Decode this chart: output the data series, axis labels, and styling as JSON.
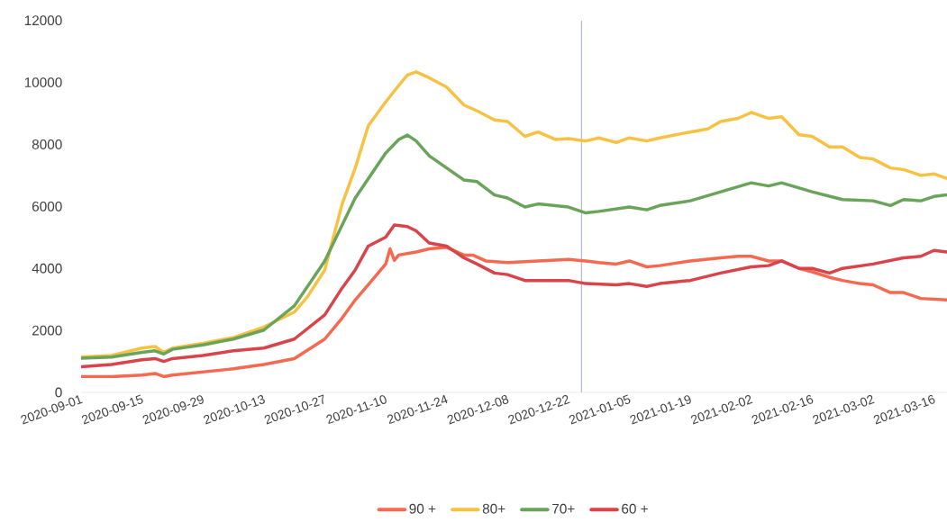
{
  "chart_data": {
    "type": "line",
    "legend": "bottom",
    "marker": "none",
    "line_style": "solid",
    "grid": false,
    "xlim": [
      "2020-09-01",
      "2021-03-19"
    ],
    "ylim": [
      0,
      12000
    ],
    "xticks": [
      "2020-09-01",
      "2020-09-15",
      "2020-09-29",
      "2020-10-13",
      "2020-10-27",
      "2020-11-10",
      "2020-11-24",
      "2020-12-08",
      "2020-12-22",
      "2021-01-05",
      "2021-01-19",
      "2021-02-02",
      "2021-02-16",
      "2021-03-02",
      "2021-03-16"
    ],
    "yticks": [
      0,
      2000,
      4000,
      6000,
      8000,
      10000,
      12000
    ],
    "ref_lines": [
      {
        "axis": "x",
        "value": "2020-12-25",
        "color": "#a3acd0"
      }
    ],
    "series": [
      {
        "name": "90 +",
        "color": "#f4694f",
        "x": [
          "2020-09-01",
          "2020-09-08",
          "2020-09-15",
          "2020-09-18",
          "2020-09-20",
          "2020-09-22",
          "2020-09-29",
          "2020-10-06",
          "2020-10-13",
          "2020-10-20",
          "2020-10-27",
          "2020-10-31",
          "2020-11-03",
          "2020-11-06",
          "2020-11-10",
          "2020-11-11",
          "2020-11-12",
          "2020-11-13",
          "2020-11-17",
          "2020-11-20",
          "2020-11-24",
          "2020-11-28",
          "2020-11-30",
          "2020-12-03",
          "2020-12-08",
          "2020-12-15",
          "2020-12-22",
          "2020-12-26",
          "2020-12-29",
          "2021-01-02",
          "2021-01-05",
          "2021-01-09",
          "2021-01-12",
          "2021-01-19",
          "2021-01-26",
          "2021-01-30",
          "2021-02-02",
          "2021-02-06",
          "2021-02-09",
          "2021-02-13",
          "2021-02-16",
          "2021-02-20",
          "2021-02-23",
          "2021-02-27",
          "2021-03-02",
          "2021-03-06",
          "2021-03-09",
          "2021-03-13",
          "2021-03-19"
        ],
        "values": [
          510,
          510,
          560,
          610,
          510,
          560,
          660,
          760,
          900,
          1090,
          1720,
          2400,
          2980,
          3470,
          4140,
          4630,
          4260,
          4430,
          4530,
          4630,
          4680,
          4430,
          4430,
          4240,
          4190,
          4240,
          4290,
          4240,
          4190,
          4140,
          4240,
          4050,
          4090,
          4240,
          4340,
          4390,
          4390,
          4240,
          4240,
          4000,
          3890,
          3710,
          3610,
          3510,
          3470,
          3220,
          3220,
          3030,
          2980
        ]
      },
      {
        "name": "80+",
        "color": "#f7c244",
        "x": [
          "2020-09-01",
          "2020-09-08",
          "2020-09-15",
          "2020-09-18",
          "2020-09-20",
          "2020-09-22",
          "2020-09-29",
          "2020-10-06",
          "2020-10-13",
          "2020-10-20",
          "2020-10-23",
          "2020-10-27",
          "2020-10-31",
          "2020-11-03",
          "2020-11-06",
          "2020-11-10",
          "2020-11-13",
          "2020-11-15",
          "2020-11-17",
          "2020-11-20",
          "2020-11-24",
          "2020-11-28",
          "2020-12-01",
          "2020-12-05",
          "2020-12-08",
          "2020-12-12",
          "2020-12-15",
          "2020-12-19",
          "2020-12-22",
          "2020-12-26",
          "2020-12-29",
          "2021-01-02",
          "2021-01-05",
          "2021-01-09",
          "2021-01-12",
          "2021-01-19",
          "2021-01-23",
          "2021-01-26",
          "2021-01-30",
          "2021-02-02",
          "2021-02-06",
          "2021-02-09",
          "2021-02-13",
          "2021-02-16",
          "2021-02-20",
          "2021-02-23",
          "2021-02-27",
          "2021-03-02",
          "2021-03-06",
          "2021-03-09",
          "2021-03-13",
          "2021-03-16",
          "2021-03-19"
        ],
        "values": [
          1140,
          1190,
          1430,
          1480,
          1290,
          1430,
          1580,
          1770,
          2110,
          2590,
          3080,
          3950,
          6080,
          7240,
          8600,
          9370,
          9900,
          10240,
          10340,
          10150,
          9850,
          9270,
          9080,
          8790,
          8740,
          8260,
          8400,
          8160,
          8190,
          8110,
          8210,
          8060,
          8210,
          8110,
          8210,
          8400,
          8500,
          8740,
          8840,
          9030,
          8840,
          8890,
          8310,
          8260,
          7920,
          7920,
          7580,
          7530,
          7240,
          7190,
          7000,
          7050,
          6900
        ]
      },
      {
        "name": "70+",
        "color": "#6aa35a",
        "x": [
          "2020-09-01",
          "2020-09-08",
          "2020-09-15",
          "2020-09-18",
          "2020-09-20",
          "2020-09-22",
          "2020-09-29",
          "2020-10-06",
          "2020-10-13",
          "2020-10-20",
          "2020-10-27",
          "2020-11-03",
          "2020-11-10",
          "2020-11-13",
          "2020-11-15",
          "2020-11-17",
          "2020-11-20",
          "2020-11-24",
          "2020-11-28",
          "2020-12-01",
          "2020-12-05",
          "2020-12-08",
          "2020-12-12",
          "2020-12-15",
          "2020-12-22",
          "2020-12-26",
          "2020-12-29",
          "2021-01-05",
          "2021-01-09",
          "2021-01-12",
          "2021-01-19",
          "2021-01-26",
          "2021-02-02",
          "2021-02-06",
          "2021-02-09",
          "2021-02-16",
          "2021-02-23",
          "2021-03-02",
          "2021-03-06",
          "2021-03-09",
          "2021-03-13",
          "2021-03-16",
          "2021-03-19"
        ],
        "values": [
          1100,
          1140,
          1290,
          1340,
          1240,
          1390,
          1530,
          1720,
          2010,
          2790,
          4240,
          6270,
          7720,
          8160,
          8300,
          8110,
          7630,
          7240,
          6850,
          6800,
          6370,
          6270,
          5980,
          6080,
          5980,
          5790,
          5840,
          5980,
          5890,
          6030,
          6180,
          6470,
          6760,
          6660,
          6760,
          6470,
          6220,
          6180,
          6030,
          6220,
          6180,
          6320,
          6370
        ]
      },
      {
        "name": "60 +",
        "color": "#d9434a",
        "x": [
          "2020-09-01",
          "2020-09-08",
          "2020-09-15",
          "2020-09-18",
          "2020-09-20",
          "2020-09-22",
          "2020-09-29",
          "2020-10-06",
          "2020-10-13",
          "2020-10-20",
          "2020-10-27",
          "2020-10-31",
          "2020-11-03",
          "2020-11-06",
          "2020-11-10",
          "2020-11-12",
          "2020-11-15",
          "2020-11-17",
          "2020-11-20",
          "2020-11-24",
          "2020-11-28",
          "2020-12-01",
          "2020-12-05",
          "2020-12-08",
          "2020-12-12",
          "2020-12-15",
          "2020-12-22",
          "2020-12-26",
          "2021-01-02",
          "2021-01-05",
          "2021-01-09",
          "2021-01-12",
          "2021-01-19",
          "2021-01-26",
          "2021-02-02",
          "2021-02-06",
          "2021-02-09",
          "2021-02-13",
          "2021-02-16",
          "2021-02-20",
          "2021-02-23",
          "2021-03-02",
          "2021-03-09",
          "2021-03-13",
          "2021-03-16",
          "2021-03-19"
        ],
        "values": [
          830,
          900,
          1050,
          1090,
          1000,
          1090,
          1190,
          1340,
          1430,
          1720,
          2500,
          3370,
          3950,
          4720,
          5010,
          5400,
          5350,
          5210,
          4820,
          4720,
          4340,
          4140,
          3850,
          3800,
          3610,
          3610,
          3610,
          3510,
          3470,
          3510,
          3420,
          3510,
          3610,
          3850,
          4050,
          4090,
          4240,
          4000,
          4000,
          3850,
          4000,
          4140,
          4340,
          4390,
          4580,
          4530
        ]
      }
    ]
  }
}
